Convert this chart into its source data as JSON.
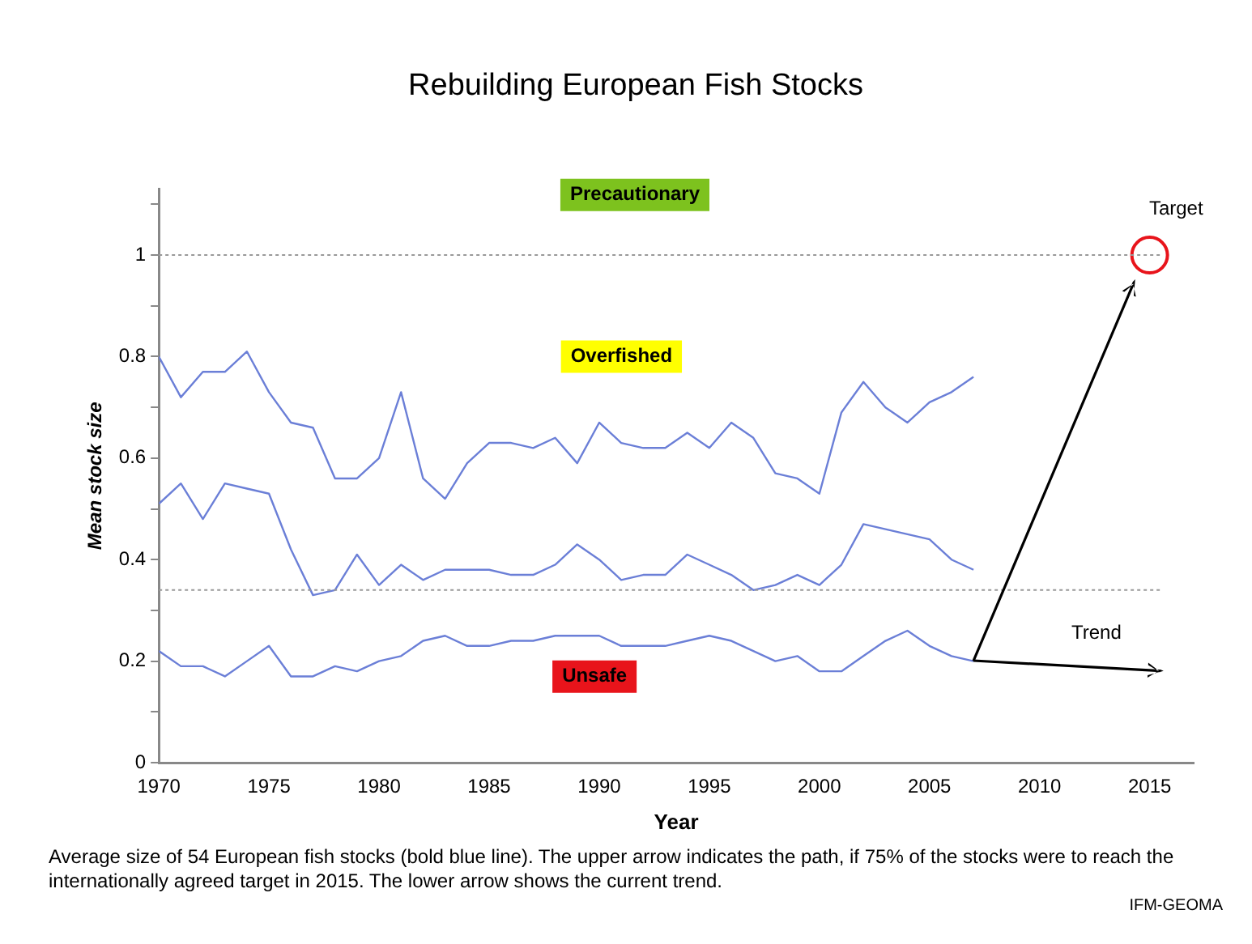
{
  "chart_data": {
    "type": "line",
    "title": "Rebuilding European Fish Stocks",
    "xlabel": "Year",
    "ylabel": "Mean stock size",
    "x": [
      1970,
      1971,
      1972,
      1973,
      1974,
      1975,
      1976,
      1977,
      1978,
      1979,
      1980,
      1981,
      1982,
      1983,
      1984,
      1985,
      1986,
      1987,
      1988,
      1989,
      1990,
      1991,
      1992,
      1993,
      1994,
      1995,
      1996,
      1997,
      1998,
      1999,
      2000,
      2001,
      2002,
      2003,
      2004,
      2005,
      2006,
      2007
    ],
    "series": [
      {
        "color": "#6b7fd7",
        "values": [
          0.8,
          0.72,
          0.77,
          0.77,
          0.81,
          0.73,
          0.67,
          0.66,
          0.56,
          0.56,
          0.6,
          0.73,
          0.56,
          0.52,
          0.59,
          0.63,
          0.63,
          0.62,
          0.64,
          0.59,
          0.67,
          0.63,
          0.62,
          0.62,
          0.65,
          0.62,
          0.67,
          0.64,
          0.57,
          0.56,
          0.53,
          0.69,
          0.75,
          0.7,
          0.67,
          0.71,
          0.73,
          0.76
        ]
      },
      {
        "color": "#6b7fd7",
        "values": [
          0.51,
          0.55,
          0.48,
          0.55,
          0.54,
          0.53,
          0.42,
          0.33,
          0.34,
          0.41,
          0.35,
          0.39,
          0.36,
          0.38,
          0.38,
          0.38,
          0.37,
          0.37,
          0.39,
          0.43,
          0.4,
          0.36,
          0.37,
          0.37,
          0.41,
          0.39,
          0.37,
          0.34,
          0.35,
          0.37,
          0.35,
          0.39,
          0.47,
          0.46,
          0.45,
          0.44,
          0.4,
          0.38
        ]
      },
      {
        "color": "#6b7fd7",
        "values": [
          0.22,
          0.19,
          0.19,
          0.17,
          0.2,
          0.23,
          0.17,
          0.17,
          0.19,
          0.18,
          0.2,
          0.21,
          0.24,
          0.25,
          0.23,
          0.23,
          0.24,
          0.24,
          0.25,
          0.25,
          0.25,
          0.23,
          0.23,
          0.23,
          0.24,
          0.25,
          0.24,
          0.22,
          0.2,
          0.21,
          0.18,
          0.18,
          0.21,
          0.24,
          0.26,
          0.23,
          0.21,
          0.2
        ]
      },
      {
        "type": "scatter",
        "marker": "circle",
        "color": "#e8141b",
        "x": [
          2015
        ],
        "values": [
          1.0
        ]
      }
    ],
    "xlim": [
      1970,
      2017
    ],
    "xticks": [
      1970,
      1975,
      1980,
      1985,
      1990,
      1995,
      2000,
      2005,
      2010,
      2015
    ],
    "ylim": [
      0,
      1.13
    ],
    "yticks": [
      0,
      {
        "value": 0.1,
        "label": null
      },
      0.2,
      {
        "value": 0.3,
        "label": null
      },
      0.4,
      {
        "value": 0.5,
        "label": null
      },
      0.6,
      {
        "value": 0.7,
        "label": null
      },
      0.8,
      {
        "value": 0.9,
        "label": null
      },
      1,
      {
        "value": 1.1,
        "label": null
      }
    ],
    "ref_lines": [
      {
        "axis": "y",
        "value": 1,
        "color": "#999999",
        "line_style": "dotted"
      },
      {
        "axis": "y",
        "value": 0.34,
        "color": "#999999",
        "line_style": "dotted"
      }
    ],
    "annotations": [
      "Precautionary",
      "Overfished",
      "Unsafe",
      "Target",
      "Trend",
      "Average size of 54 European fish stocks (bold blue line). The upper arrow indicates the path, if 75% of the stocks were to reach the internationally agreed target in 2015. The lower arrow shows the current trend.",
      "IFM-GEOMA"
    ],
    "grid": false,
    "legend": false,
    "line_style": "solid"
  }
}
